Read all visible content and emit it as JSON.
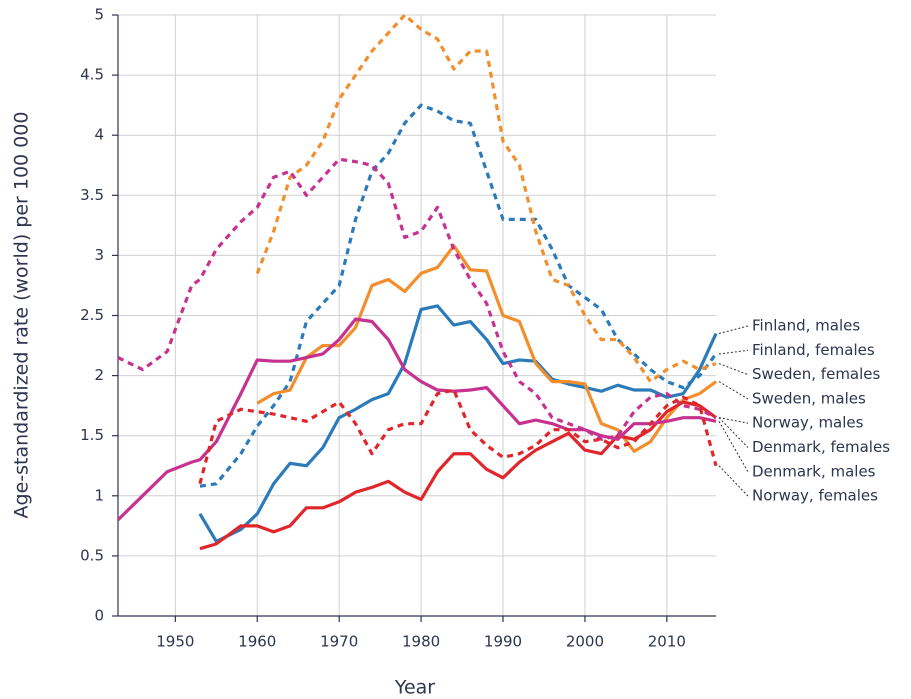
{
  "chart_data": {
    "type": "line",
    "xlabel": "Year",
    "ylabel": "Age-standardized rate (world) per 100 000",
    "x": [
      1943,
      1946,
      1949,
      1952,
      1953,
      1955,
      1958,
      1960,
      1962,
      1964,
      1966,
      1968,
      1970,
      1972,
      1974,
      1976,
      1978,
      1980,
      1982,
      1984,
      1986,
      1988,
      1990,
      1992,
      1994,
      1996,
      1998,
      2000,
      2002,
      2004,
      2006,
      2008,
      2010,
      2012,
      2014,
      2016
    ],
    "xlim": [
      1943,
      2016
    ],
    "xticks": [
      1950,
      1960,
      1970,
      1980,
      1990,
      2000,
      2010
    ],
    "ylim": [
      0,
      5
    ],
    "yticks": [
      0,
      0.5,
      1,
      1.5,
      2,
      2.5,
      3,
      3.5,
      4,
      4.5,
      5
    ],
    "grid": true,
    "legend": "right",
    "series": [
      {
        "name": "Finland, males",
        "color": "#2b7bba",
        "dashed": false,
        "values": [
          null,
          null,
          null,
          null,
          0.85,
          0.62,
          0.72,
          0.85,
          1.1,
          1.27,
          1.25,
          1.4,
          1.65,
          1.72,
          1.8,
          1.85,
          2.1,
          2.55,
          2.58,
          2.42,
          2.45,
          2.3,
          2.1,
          2.13,
          2.12,
          1.97,
          1.93,
          1.9,
          1.87,
          1.92,
          1.88,
          1.88,
          1.82,
          1.85,
          2.05,
          2.35
        ]
      },
      {
        "name": "Finland, females",
        "color": "#2b7bba",
        "dashed": true,
        "values": [
          null,
          null,
          null,
          null,
          1.08,
          1.1,
          1.35,
          1.58,
          1.75,
          1.95,
          2.45,
          2.6,
          2.75,
          3.3,
          3.7,
          3.85,
          4.1,
          4.25,
          4.2,
          4.12,
          4.1,
          3.7,
          3.3,
          3.3,
          3.3,
          3.05,
          2.75,
          2.65,
          2.55,
          2.3,
          2.18,
          2.05,
          1.95,
          1.9,
          2.0,
          2.18
        ]
      },
      {
        "name": "Sweden, females",
        "color": "#f28e2b",
        "dashed": true,
        "values": [
          null,
          null,
          null,
          null,
          null,
          null,
          null,
          2.85,
          3.2,
          3.65,
          3.75,
          3.95,
          4.3,
          4.5,
          4.7,
          4.85,
          5.0,
          4.88,
          4.8,
          4.55,
          4.7,
          4.7,
          3.95,
          3.75,
          3.2,
          2.8,
          2.75,
          2.5,
          2.3,
          2.3,
          2.15,
          1.95,
          2.05,
          2.12,
          2.05,
          2.1
        ]
      },
      {
        "name": "Sweden, males",
        "color": "#f28e2b",
        "dashed": false,
        "values": [
          null,
          null,
          null,
          null,
          null,
          null,
          null,
          1.77,
          1.85,
          1.88,
          2.15,
          2.25,
          2.25,
          2.4,
          2.75,
          2.8,
          2.7,
          2.85,
          2.9,
          3.08,
          2.88,
          2.87,
          2.5,
          2.45,
          2.1,
          1.95,
          1.95,
          1.93,
          1.6,
          1.55,
          1.37,
          1.45,
          1.65,
          1.8,
          1.85,
          1.95
        ]
      },
      {
        "name": "Norway, males",
        "color": "#e0262b",
        "dashed": false,
        "values": [
          null,
          null,
          null,
          null,
          0.56,
          0.6,
          0.75,
          0.75,
          0.7,
          0.75,
          0.9,
          0.9,
          0.95,
          1.03,
          1.07,
          1.12,
          1.03,
          0.97,
          1.2,
          1.35,
          1.35,
          1.22,
          1.15,
          1.28,
          1.38,
          1.45,
          1.52,
          1.38,
          1.35,
          1.5,
          1.47,
          1.55,
          1.7,
          1.78,
          1.75,
          1.65
        ]
      },
      {
        "name": "Denmark, females",
        "color": "#c7318f",
        "dashed": true,
        "values": [
          2.15,
          2.05,
          2.2,
          2.75,
          2.8,
          3.05,
          3.28,
          3.4,
          3.65,
          3.7,
          3.5,
          3.65,
          3.8,
          3.78,
          3.75,
          3.6,
          3.15,
          3.2,
          3.4,
          3.05,
          2.8,
          2.6,
          2.2,
          1.95,
          1.85,
          1.65,
          1.6,
          1.55,
          1.47,
          1.5,
          1.7,
          1.82,
          1.85,
          1.75,
          1.72,
          1.65
        ]
      },
      {
        "name": "Denmark, males",
        "color": "#c7318f",
        "dashed": false,
        "values": [
          0.8,
          1.0,
          1.2,
          1.28,
          1.3,
          1.45,
          1.85,
          2.13,
          2.12,
          2.12,
          2.15,
          2.18,
          2.3,
          2.47,
          2.45,
          2.3,
          2.05,
          1.95,
          1.88,
          1.87,
          1.88,
          1.9,
          1.75,
          1.6,
          1.63,
          1.6,
          1.55,
          1.55,
          1.5,
          1.47,
          1.6,
          1.6,
          1.62,
          1.65,
          1.65,
          1.62
        ]
      },
      {
        "name": "Norway, females",
        "color": "#e0262b",
        "dashed": true,
        "values": [
          null,
          null,
          null,
          null,
          1.1,
          1.62,
          1.72,
          1.7,
          1.68,
          1.65,
          1.62,
          1.7,
          1.78,
          1.6,
          1.35,
          1.55,
          1.6,
          1.6,
          1.85,
          1.88,
          1.55,
          1.42,
          1.32,
          1.35,
          1.42,
          1.55,
          1.55,
          1.45,
          1.47,
          1.4,
          1.45,
          1.6,
          1.75,
          1.82,
          1.75,
          1.25
        ]
      }
    ]
  }
}
